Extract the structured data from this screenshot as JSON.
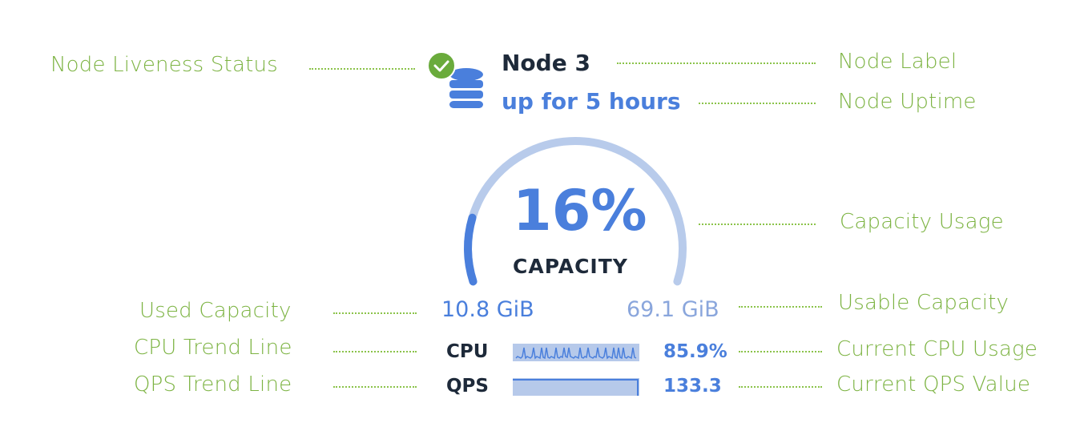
{
  "node": {
    "label": "Node 3",
    "uptime": "up for 5 hours",
    "liveness_icon": "check-circle-icon",
    "node_icon": "database-icon",
    "status_color": "#6aab3c"
  },
  "capacity": {
    "percent_text": "16%",
    "percent": 16,
    "label": "CAPACITY",
    "used": "10.8 GiB",
    "usable": "69.1 GiB"
  },
  "metrics": [
    {
      "label": "CPU",
      "value": "85.9%"
    },
    {
      "label": "QPS",
      "value": "133.3"
    }
  ],
  "annotations": {
    "liveness": "Node Liveness Status",
    "node_label": "Node Label",
    "uptime": "Node Uptime",
    "capacity_usage": "Capacity Usage",
    "used_capacity": "Used Capacity",
    "usable_capacity": "Usable Capacity",
    "cpu_trend": "CPU Trend Line",
    "cpu_current": "Current CPU Usage",
    "qps_trend": "QPS Trend Line",
    "qps_current": "Current QPS Value"
  },
  "colors": {
    "accent": "#4a7fdc",
    "track": "#b5c8ea",
    "annotation": "#7cb342",
    "dark": "#1e2a3a"
  }
}
